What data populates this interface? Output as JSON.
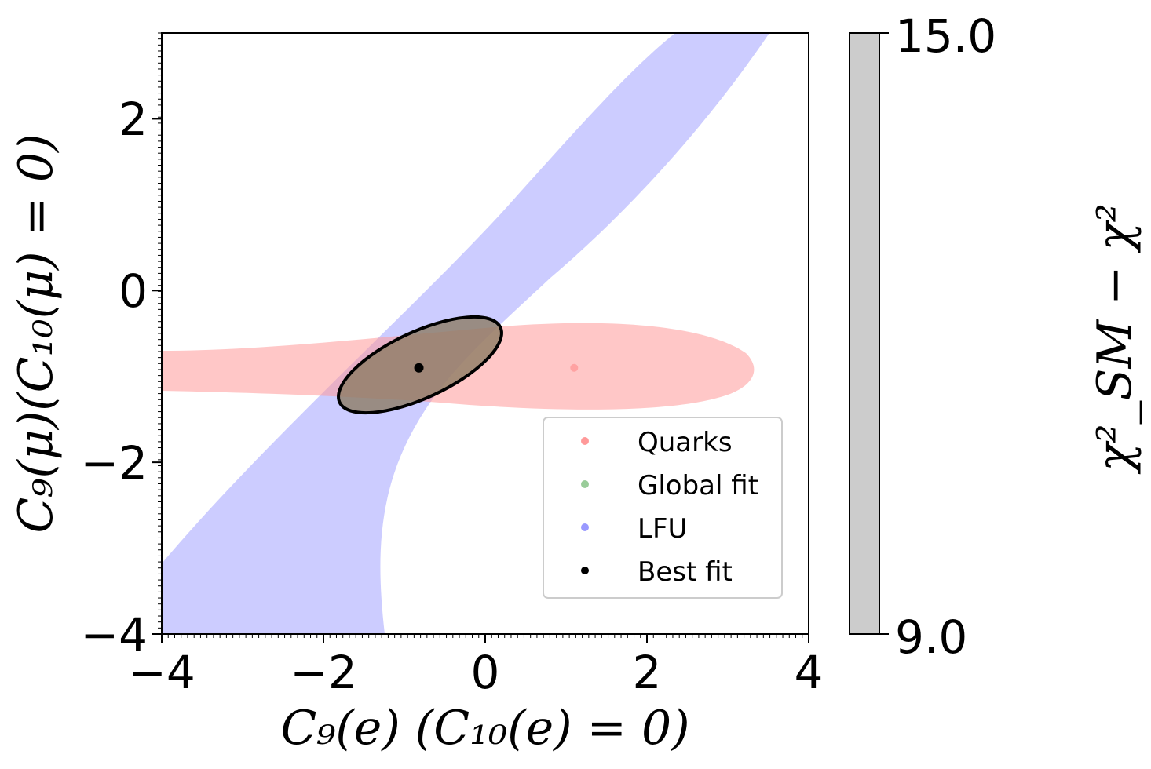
{
  "chart_data": {
    "type": "contour",
    "xlabel": "C₉(e) (C₁₀(e) = 0)",
    "ylabel": "C₉(μ)(C₁₀(μ) = 0)",
    "xlim": [
      -4,
      4
    ],
    "ylim": [
      -4,
      3
    ],
    "x_ticks": [
      "−4",
      "−2",
      "0",
      "2",
      "4"
    ],
    "y_ticks": [
      "−4",
      "−2",
      "0",
      "2"
    ],
    "series": [
      {
        "name": "Quarks",
        "color": "#ff9999",
        "point": {
          "x": 1.1,
          "y": -0.9
        }
      },
      {
        "name": "Global fit",
        "color": "#99cc99",
        "region_color": "#8a7a60"
      },
      {
        "name": "LFU",
        "color": "#9999ff"
      },
      {
        "name": "Best fit",
        "color": "#000000",
        "point": {
          "x": -0.82,
          "y": -0.9
        }
      }
    ],
    "legend_position": "lower-right",
    "colorbar": {
      "label": "χ²_SM − χ²",
      "ticks": [
        "15.0",
        "9.0"
      ],
      "range": [
        9.0,
        15.0
      ],
      "color": "#cccccc"
    }
  }
}
